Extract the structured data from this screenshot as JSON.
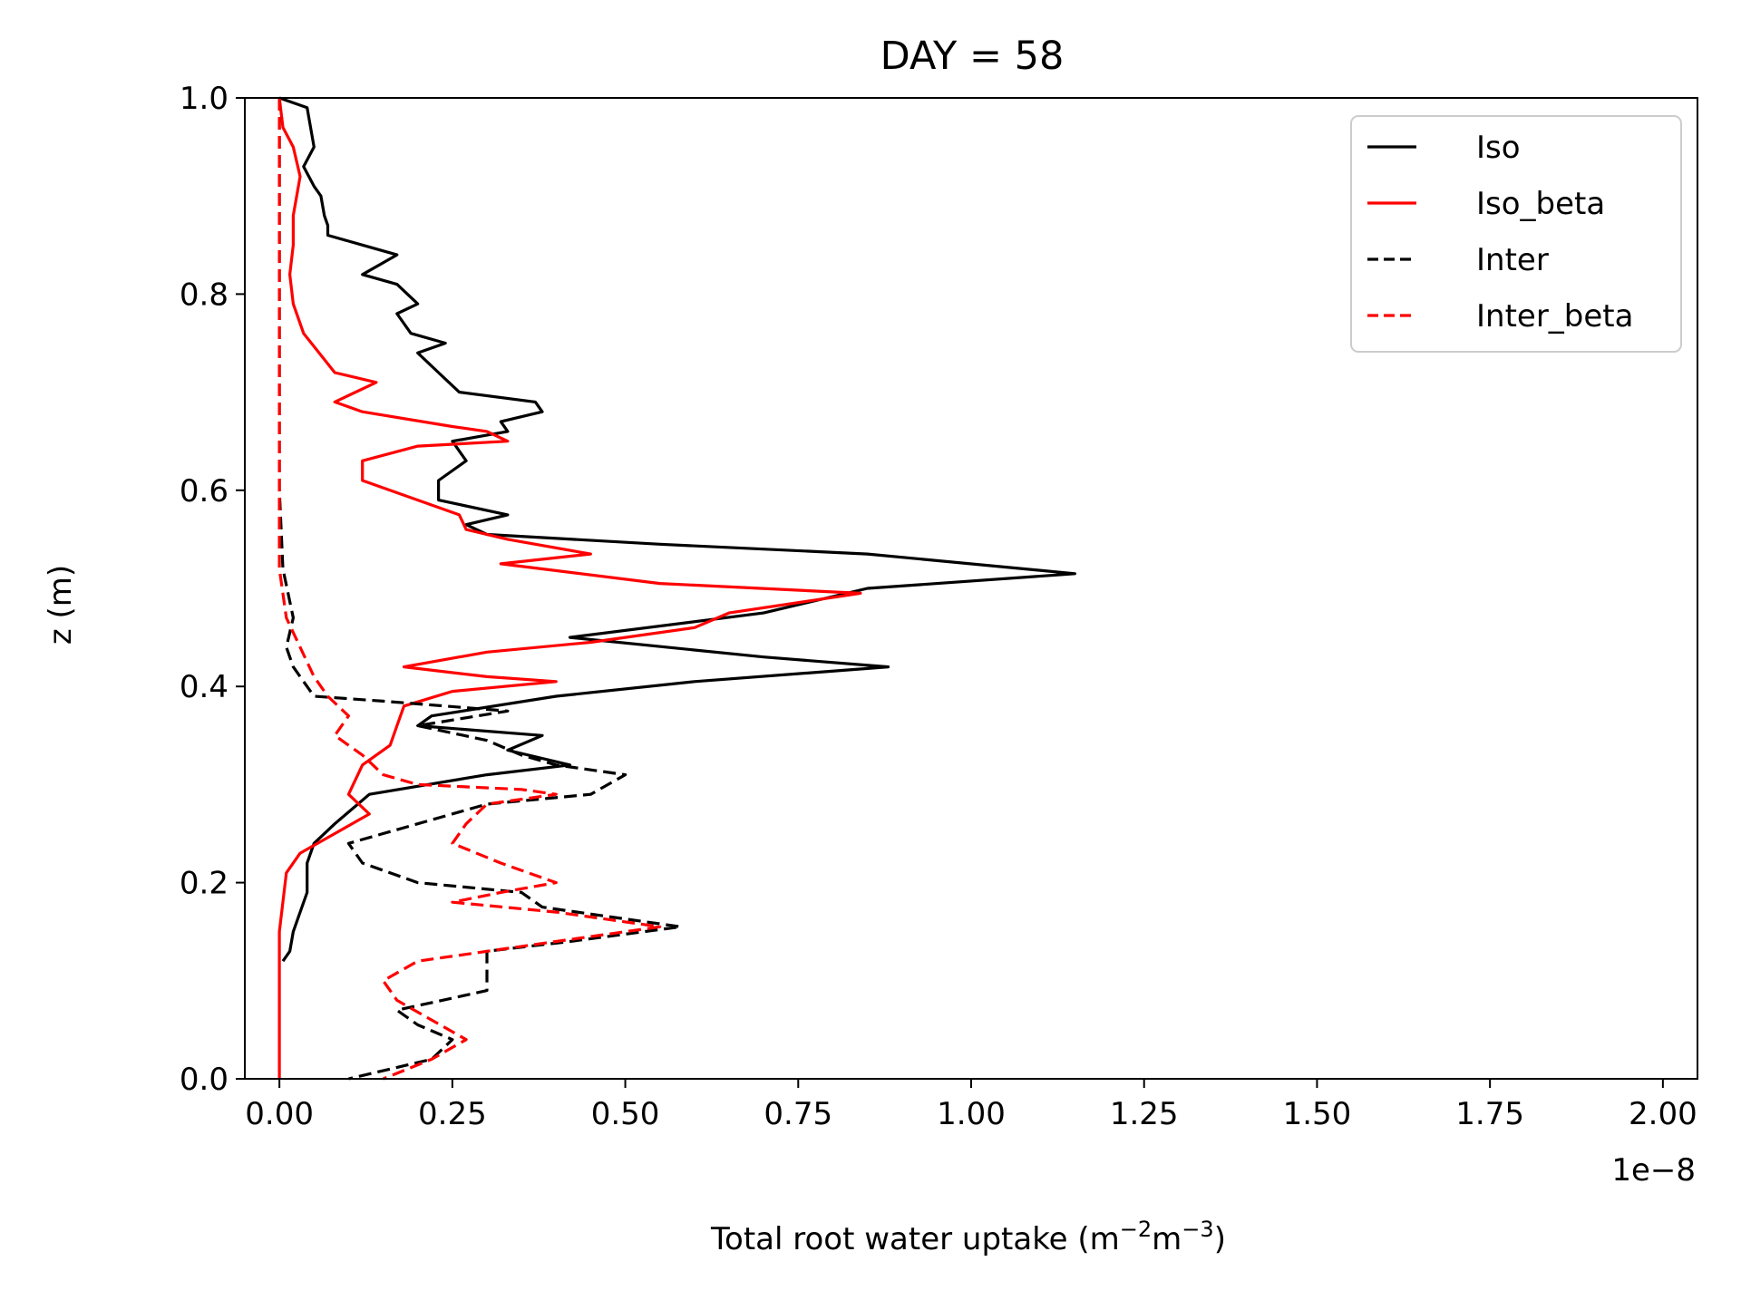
{
  "chart_data": {
    "type": "line",
    "title": "DAY = 58",
    "xlabel": {
      "main": "Total root water uptake (m",
      "sup1": "−2",
      "mid": "m",
      "sup2": "−3",
      "end": ")"
    },
    "ylabel": "z (m)",
    "x_offset_label": "1e−8",
    "xlim": [
      -0.05,
      2.05
    ],
    "ylim": [
      0.0,
      1.0
    ],
    "xticks": [
      0.0,
      0.25,
      0.5,
      0.75,
      1.0,
      1.25,
      1.5,
      1.75,
      2.0
    ],
    "xtick_labels": [
      "0.00",
      "0.25",
      "0.50",
      "0.75",
      "1.00",
      "1.25",
      "1.50",
      "1.75",
      "2.00"
    ],
    "yticks": [
      0.0,
      0.2,
      0.4,
      0.6,
      0.8,
      1.0
    ],
    "ytick_labels": [
      "0.0",
      "0.2",
      "0.4",
      "0.6",
      "0.8",
      "1.0"
    ],
    "grid": false,
    "legend_position": "top-right",
    "series": [
      {
        "name": "Iso",
        "color": "#000000",
        "dash": "solid",
        "points": [
          [
            0.0,
            1.0
          ],
          [
            0.04,
            0.99
          ],
          [
            0.045,
            0.97
          ],
          [
            0.05,
            0.95
          ],
          [
            0.035,
            0.93
          ],
          [
            0.05,
            0.91
          ],
          [
            0.06,
            0.9
          ],
          [
            0.065,
            0.88
          ],
          [
            0.07,
            0.87
          ],
          [
            0.07,
            0.86
          ],
          [
            0.12,
            0.85
          ],
          [
            0.17,
            0.84
          ],
          [
            0.12,
            0.82
          ],
          [
            0.17,
            0.81
          ],
          [
            0.2,
            0.79
          ],
          [
            0.17,
            0.78
          ],
          [
            0.19,
            0.76
          ],
          [
            0.24,
            0.75
          ],
          [
            0.2,
            0.74
          ],
          [
            0.23,
            0.72
          ],
          [
            0.26,
            0.7
          ],
          [
            0.37,
            0.69
          ],
          [
            0.38,
            0.68
          ],
          [
            0.32,
            0.67
          ],
          [
            0.33,
            0.66
          ],
          [
            0.25,
            0.65
          ],
          [
            0.27,
            0.63
          ],
          [
            0.23,
            0.61
          ],
          [
            0.23,
            0.59
          ],
          [
            0.33,
            0.575
          ],
          [
            0.27,
            0.565
          ],
          [
            0.3,
            0.555
          ],
          [
            0.55,
            0.545
          ],
          [
            0.85,
            0.535
          ],
          [
            1.15,
            0.515
          ],
          [
            0.85,
            0.5
          ],
          [
            0.7,
            0.475
          ],
          [
            0.42,
            0.45
          ],
          [
            0.7,
            0.43
          ],
          [
            0.88,
            0.42
          ],
          [
            0.6,
            0.405
          ],
          [
            0.4,
            0.39
          ],
          [
            0.22,
            0.37
          ],
          [
            0.2,
            0.36
          ],
          [
            0.38,
            0.35
          ],
          [
            0.33,
            0.335
          ],
          [
            0.42,
            0.32
          ],
          [
            0.3,
            0.31
          ],
          [
            0.13,
            0.29
          ],
          [
            0.08,
            0.26
          ],
          [
            0.05,
            0.24
          ],
          [
            0.04,
            0.22
          ],
          [
            0.04,
            0.19
          ],
          [
            0.03,
            0.17
          ],
          [
            0.02,
            0.15
          ],
          [
            0.015,
            0.13
          ],
          [
            0.005,
            0.12
          ]
        ]
      },
      {
        "name": "Iso_beta",
        "color": "#ff0000",
        "dash": "solid",
        "points": [
          [
            0.0,
            1.0
          ],
          [
            0.005,
            0.97
          ],
          [
            0.02,
            0.95
          ],
          [
            0.03,
            0.92
          ],
          [
            0.02,
            0.88
          ],
          [
            0.02,
            0.85
          ],
          [
            0.015,
            0.82
          ],
          [
            0.02,
            0.79
          ],
          [
            0.035,
            0.76
          ],
          [
            0.08,
            0.72
          ],
          [
            0.14,
            0.71
          ],
          [
            0.08,
            0.69
          ],
          [
            0.12,
            0.68
          ],
          [
            0.25,
            0.665
          ],
          [
            0.3,
            0.66
          ],
          [
            0.33,
            0.65
          ],
          [
            0.2,
            0.645
          ],
          [
            0.12,
            0.63
          ],
          [
            0.12,
            0.61
          ],
          [
            0.2,
            0.59
          ],
          [
            0.26,
            0.575
          ],
          [
            0.27,
            0.56
          ],
          [
            0.33,
            0.55
          ],
          [
            0.45,
            0.535
          ],
          [
            0.32,
            0.525
          ],
          [
            0.55,
            0.505
          ],
          [
            0.84,
            0.495
          ],
          [
            0.65,
            0.475
          ],
          [
            0.6,
            0.46
          ],
          [
            0.45,
            0.445
          ],
          [
            0.3,
            0.435
          ],
          [
            0.18,
            0.42
          ],
          [
            0.3,
            0.41
          ],
          [
            0.4,
            0.405
          ],
          [
            0.25,
            0.395
          ],
          [
            0.18,
            0.38
          ],
          [
            0.17,
            0.36
          ],
          [
            0.16,
            0.34
          ],
          [
            0.12,
            0.32
          ],
          [
            0.1,
            0.29
          ],
          [
            0.13,
            0.27
          ],
          [
            0.08,
            0.25
          ],
          [
            0.03,
            0.23
          ],
          [
            0.01,
            0.21
          ],
          [
            0.0,
            0.15
          ],
          [
            0.0,
            0.0
          ]
        ]
      },
      {
        "name": "Inter",
        "color": "#000000",
        "dash": "dashed",
        "points": [
          [
            0.0,
            1.0
          ],
          [
            0.0,
            0.7
          ],
          [
            0.0,
            0.6
          ],
          [
            0.005,
            0.52
          ],
          [
            0.02,
            0.47
          ],
          [
            0.01,
            0.44
          ],
          [
            0.02,
            0.42
          ],
          [
            0.05,
            0.39
          ],
          [
            0.15,
            0.385
          ],
          [
            0.33,
            0.375
          ],
          [
            0.2,
            0.36
          ],
          [
            0.3,
            0.345
          ],
          [
            0.35,
            0.33
          ],
          [
            0.4,
            0.32
          ],
          [
            0.5,
            0.31
          ],
          [
            0.45,
            0.29
          ],
          [
            0.3,
            0.28
          ],
          [
            0.2,
            0.26
          ],
          [
            0.1,
            0.24
          ],
          [
            0.12,
            0.22
          ],
          [
            0.2,
            0.2
          ],
          [
            0.35,
            0.19
          ],
          [
            0.38,
            0.175
          ],
          [
            0.48,
            0.165
          ],
          [
            0.58,
            0.155
          ],
          [
            0.42,
            0.14
          ],
          [
            0.3,
            0.13
          ],
          [
            0.3,
            0.11
          ],
          [
            0.3,
            0.09
          ],
          [
            0.17,
            0.07
          ],
          [
            0.2,
            0.055
          ],
          [
            0.25,
            0.04
          ],
          [
            0.22,
            0.02
          ],
          [
            0.1,
            0.0
          ]
        ]
      },
      {
        "name": "Inter_beta",
        "color": "#ff0000",
        "dash": "dashed",
        "points": [
          [
            0.0,
            1.0
          ],
          [
            0.0,
            0.7
          ],
          [
            0.0,
            0.6
          ],
          [
            0.0,
            0.52
          ],
          [
            0.01,
            0.47
          ],
          [
            0.03,
            0.44
          ],
          [
            0.05,
            0.41
          ],
          [
            0.07,
            0.39
          ],
          [
            0.1,
            0.37
          ],
          [
            0.08,
            0.35
          ],
          [
            0.12,
            0.33
          ],
          [
            0.15,
            0.31
          ],
          [
            0.2,
            0.3
          ],
          [
            0.35,
            0.295
          ],
          [
            0.4,
            0.29
          ],
          [
            0.3,
            0.28
          ],
          [
            0.27,
            0.26
          ],
          [
            0.25,
            0.24
          ],
          [
            0.32,
            0.22
          ],
          [
            0.4,
            0.2
          ],
          [
            0.32,
            0.19
          ],
          [
            0.25,
            0.18
          ],
          [
            0.4,
            0.17
          ],
          [
            0.5,
            0.16
          ],
          [
            0.55,
            0.155
          ],
          [
            0.4,
            0.14
          ],
          [
            0.2,
            0.12
          ],
          [
            0.15,
            0.1
          ],
          [
            0.17,
            0.08
          ],
          [
            0.22,
            0.06
          ],
          [
            0.27,
            0.04
          ],
          [
            0.22,
            0.02
          ],
          [
            0.15,
            0.0
          ]
        ]
      }
    ]
  }
}
